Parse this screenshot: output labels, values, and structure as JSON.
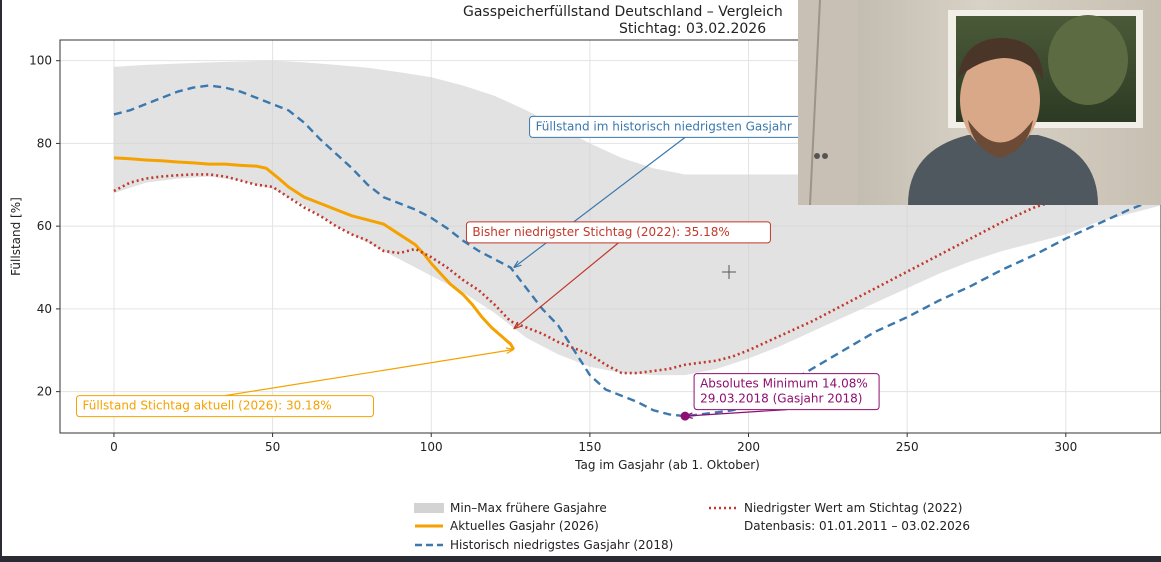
{
  "titles": {
    "line1": "Gasspeicherfüllstand Deutschland – Vergleich",
    "line2": "Stichtag: 03.02.2026"
  },
  "chart_data": {
    "type": "line",
    "xlabel": "Tag im Gasjahr (ab 1. Oktober)",
    "ylabel": "Füllstand [%]",
    "xlim": [
      -17,
      330
    ],
    "ylim": [
      10,
      105
    ],
    "xticks": [
      0,
      50,
      100,
      150,
      200,
      250,
      300
    ],
    "yticks": [
      20,
      40,
      60,
      80,
      100
    ],
    "grid": true,
    "legend_placement": "below",
    "band": {
      "name": "Min–Max frühere Gasjahre",
      "color": "#d3d3d3",
      "x": [
        0,
        10,
        20,
        30,
        40,
        50,
        60,
        70,
        80,
        90,
        100,
        110,
        120,
        130,
        140,
        150,
        160,
        170,
        180,
        190,
        200,
        210,
        220,
        230,
        240,
        250,
        260,
        270,
        280,
        290,
        300,
        310,
        320,
        330
      ],
      "upper": [
        98.5,
        99.0,
        99.3,
        99.6,
        99.8,
        100.0,
        99.6,
        99.0,
        98.3,
        97.2,
        96.0,
        94.0,
        91.5,
        88.0,
        84.0,
        80.0,
        76.5,
        74.0,
        72.5,
        72.5,
        72.5,
        72.5,
        72.5,
        72.5,
        72.5,
        72.5,
        72.5,
        72.5,
        72.5,
        72.5,
        72.5,
        72.5,
        72.5,
        72.5
      ],
      "lower": [
        68.0,
        70.5,
        71.5,
        72.0,
        71.0,
        69.0,
        65.0,
        60.0,
        56.0,
        52.0,
        48.0,
        44.0,
        39.0,
        33.0,
        29.0,
        26.0,
        24.5,
        24.0,
        24.0,
        25.5,
        28.0,
        31.0,
        34.5,
        38.0,
        41.5,
        45.0,
        48.5,
        51.5,
        54.0,
        56.0,
        58.0,
        61.0,
        63.0,
        65.0
      ]
    },
    "series": [
      {
        "name": "Aktuelles Gasjahr (2026)",
        "color": "#f5a200",
        "style": "solid",
        "x": [
          0,
          5,
          10,
          15,
          20,
          25,
          30,
          35,
          40,
          45,
          48,
          52,
          55,
          60,
          65,
          70,
          75,
          80,
          85,
          90,
          95,
          98,
          100,
          103,
          106,
          110,
          113,
          116,
          119,
          122,
          125,
          126
        ],
        "y": [
          76.5,
          76.3,
          76.0,
          75.8,
          75.5,
          75.3,
          75.0,
          75.0,
          74.7,
          74.5,
          74.0,
          71.5,
          69.5,
          67.0,
          65.5,
          64.0,
          62.5,
          61.5,
          60.5,
          58.0,
          55.5,
          53.0,
          51.0,
          48.5,
          46.0,
          43.5,
          41.0,
          38.0,
          35.5,
          33.5,
          31.5,
          30.18
        ]
      },
      {
        "name": "Historisch niedrigstes Gasjahr (2018)",
        "color": "#3a78ad",
        "style": "dashed",
        "x": [
          0,
          5,
          10,
          15,
          20,
          25,
          30,
          35,
          40,
          45,
          50,
          55,
          60,
          65,
          70,
          75,
          80,
          85,
          90,
          95,
          100,
          105,
          110,
          115,
          120,
          125,
          130,
          135,
          140,
          145,
          150,
          155,
          160,
          165,
          170,
          175,
          180,
          185,
          190,
          195,
          200,
          210,
          220,
          230,
          240,
          250,
          260,
          270,
          280,
          290,
          300,
          310,
          320,
          330
        ],
        "y": [
          87.0,
          88.0,
          89.5,
          91.0,
          92.5,
          93.5,
          94.0,
          93.5,
          92.5,
          91.0,
          89.5,
          88.0,
          85.0,
          81.0,
          77.5,
          74.0,
          70.0,
          67.0,
          65.5,
          64.0,
          62.0,
          59.5,
          56.5,
          54.0,
          52.0,
          50.0,
          45.0,
          40.0,
          36.0,
          30.0,
          24.0,
          20.5,
          19.0,
          17.5,
          15.5,
          14.5,
          14.08,
          14.5,
          15.0,
          15.5,
          16.5,
          21.0,
          25.5,
          30.0,
          34.5,
          38.0,
          42.0,
          45.5,
          49.5,
          53.0,
          57.0,
          60.5,
          64.0,
          67.0
        ]
      },
      {
        "name": "Niedrigster Wert am Stichtag (2022)",
        "color": "#c0392b",
        "style": "dotted",
        "x": [
          0,
          5,
          10,
          15,
          20,
          25,
          30,
          35,
          40,
          45,
          50,
          55,
          60,
          65,
          70,
          75,
          80,
          85,
          90,
          95,
          100,
          105,
          110,
          115,
          120,
          125,
          130,
          135,
          140,
          145,
          150,
          155,
          160,
          165,
          170,
          175,
          180,
          185,
          190,
          195,
          200,
          210,
          220,
          230,
          240,
          250,
          260,
          270,
          280,
          290,
          300,
          310,
          320,
          330
        ],
        "y": [
          68.5,
          70.5,
          71.5,
          72.0,
          72.3,
          72.5,
          72.5,
          72.0,
          71.0,
          70.0,
          69.5,
          67.0,
          64.5,
          62.5,
          60.0,
          58.0,
          56.5,
          54.0,
          53.5,
          54.5,
          52.5,
          50.0,
          47.0,
          44.5,
          41.0,
          37.0,
          35.5,
          34.0,
          32.0,
          30.5,
          29.0,
          26.5,
          24.5,
          24.5,
          25.0,
          25.5,
          26.5,
          27.0,
          27.5,
          28.5,
          30.0,
          33.5,
          37.0,
          41.0,
          45.0,
          49.0,
          53.0,
          57.0,
          61.0,
          64.5,
          67.0,
          69.5,
          72.0,
          74.0
        ]
      }
    ],
    "marker": {
      "x": 180,
      "y": 14.08,
      "color": "#8e0e72"
    },
    "annotations": [
      {
        "text": "Füllstand im historisch niedrigsten Gasjahr",
        "color": "#3a78ad",
        "bg": "#ffffff",
        "arrow_to": [
          126,
          50
        ],
        "text_at": [
          180,
          84
        ]
      },
      {
        "text": "Bisher niedrigster Stichtag (2022): 35.18%",
        "color": "#c0392b",
        "bg": "#ffffff",
        "arrow_to": [
          126,
          35.18
        ],
        "text_at": [
          159,
          58.5
        ]
      },
      {
        "text": "Füllstand Stichtag aktuell (2026): 30.18%",
        "color": "#f5a200",
        "bg": "#ffffff",
        "arrow_to": [
          126,
          30.18
        ],
        "text_at": [
          35,
          16.5
        ]
      },
      {
        "text": "Absolutes Minimum 14.08%",
        "text2": "29.03.2018 (Gasjahr 2018)",
        "color": "#8e0e72",
        "bg": "#ffffff",
        "arrow_to": [
          180,
          14.08
        ],
        "text_at": [
          212,
          20.0
        ]
      }
    ],
    "legend": [
      {
        "label": "Min–Max frühere Gasjahre",
        "kind": "band",
        "color": "#d3d3d3"
      },
      {
        "label": "Aktuelles Gasjahr (2026)",
        "kind": "solid",
        "color": "#f5a200"
      },
      {
        "label": "Historisch niedrigstes Gasjahr (2018)",
        "kind": "dashed",
        "color": "#3a78ad"
      },
      {
        "label": "Niedrigster Wert am Stichtag (2022)",
        "kind": "dotted",
        "color": "#c0392b"
      },
      {
        "label": "Datenbasis: 01.01.2011 – 03.02.2026",
        "kind": "none",
        "color": ""
      }
    ]
  }
}
